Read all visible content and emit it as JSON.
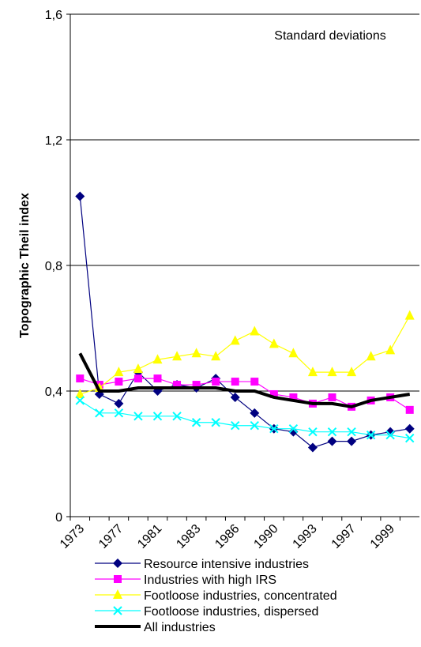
{
  "chart_data": {
    "type": "line",
    "y_label": "Topographic Theil index",
    "annotation": "Standard deviations",
    "categories": [
      "1973",
      null,
      "1977",
      null,
      "1981",
      null,
      "1983",
      null,
      "1986",
      null,
      "1990",
      null,
      "1993",
      null,
      "1997",
      null,
      "1999",
      null
    ],
    "ylim": [
      0,
      1.6
    ],
    "yticks": [
      0,
      {
        "value": 0.4,
        "label": "0,4"
      },
      {
        "value": 0.8,
        "label": "0,8"
      },
      {
        "value": 1.2,
        "label": "1,2"
      },
      {
        "value": 1.6,
        "label": "1,6"
      }
    ],
    "grid": true,
    "series": [
      {
        "name": "Resource intensive industries",
        "color": "#000080",
        "marker": "diamond",
        "values": [
          1.02,
          0.39,
          0.36,
          0.46,
          0.4,
          0.42,
          0.41,
          0.44,
          0.38,
          0.33,
          0.28,
          0.27,
          0.22,
          0.24,
          0.24,
          0.26,
          0.27,
          0.28
        ]
      },
      {
        "name": "Industries with high IRS",
        "color": "#ff00ff",
        "marker": "square",
        "values": [
          0.44,
          0.42,
          0.43,
          0.44,
          0.44,
          0.42,
          0.42,
          0.43,
          0.43,
          0.43,
          0.39,
          0.38,
          0.36,
          0.38,
          0.35,
          0.37,
          0.38,
          0.34
        ]
      },
      {
        "name": "Footloose industries, concentrated",
        "color": "#ffff00",
        "marker": "triangle",
        "values": [
          0.39,
          0.41,
          0.46,
          0.47,
          0.5,
          0.51,
          0.52,
          0.51,
          0.56,
          0.59,
          0.55,
          0.52,
          0.46,
          0.46,
          0.46,
          0.51,
          0.53,
          0.64
        ]
      },
      {
        "name": "Footloose industries, dispersed",
        "color": "#00ffff",
        "marker": "x",
        "values": [
          0.37,
          0.33,
          0.33,
          0.32,
          0.32,
          0.32,
          0.3,
          0.3,
          0.29,
          0.29,
          0.28,
          0.28,
          0.27,
          0.27,
          0.27,
          0.26,
          0.26,
          0.25
        ]
      },
      {
        "name": "All industries",
        "color": "#000000",
        "marker": "none",
        "width": 4,
        "values": [
          0.52,
          0.4,
          0.4,
          0.41,
          0.41,
          0.41,
          0.41,
          0.41,
          0.4,
          0.4,
          0.38,
          0.37,
          0.36,
          0.36,
          0.35,
          0.37,
          0.38,
          0.39
        ]
      }
    ]
  }
}
